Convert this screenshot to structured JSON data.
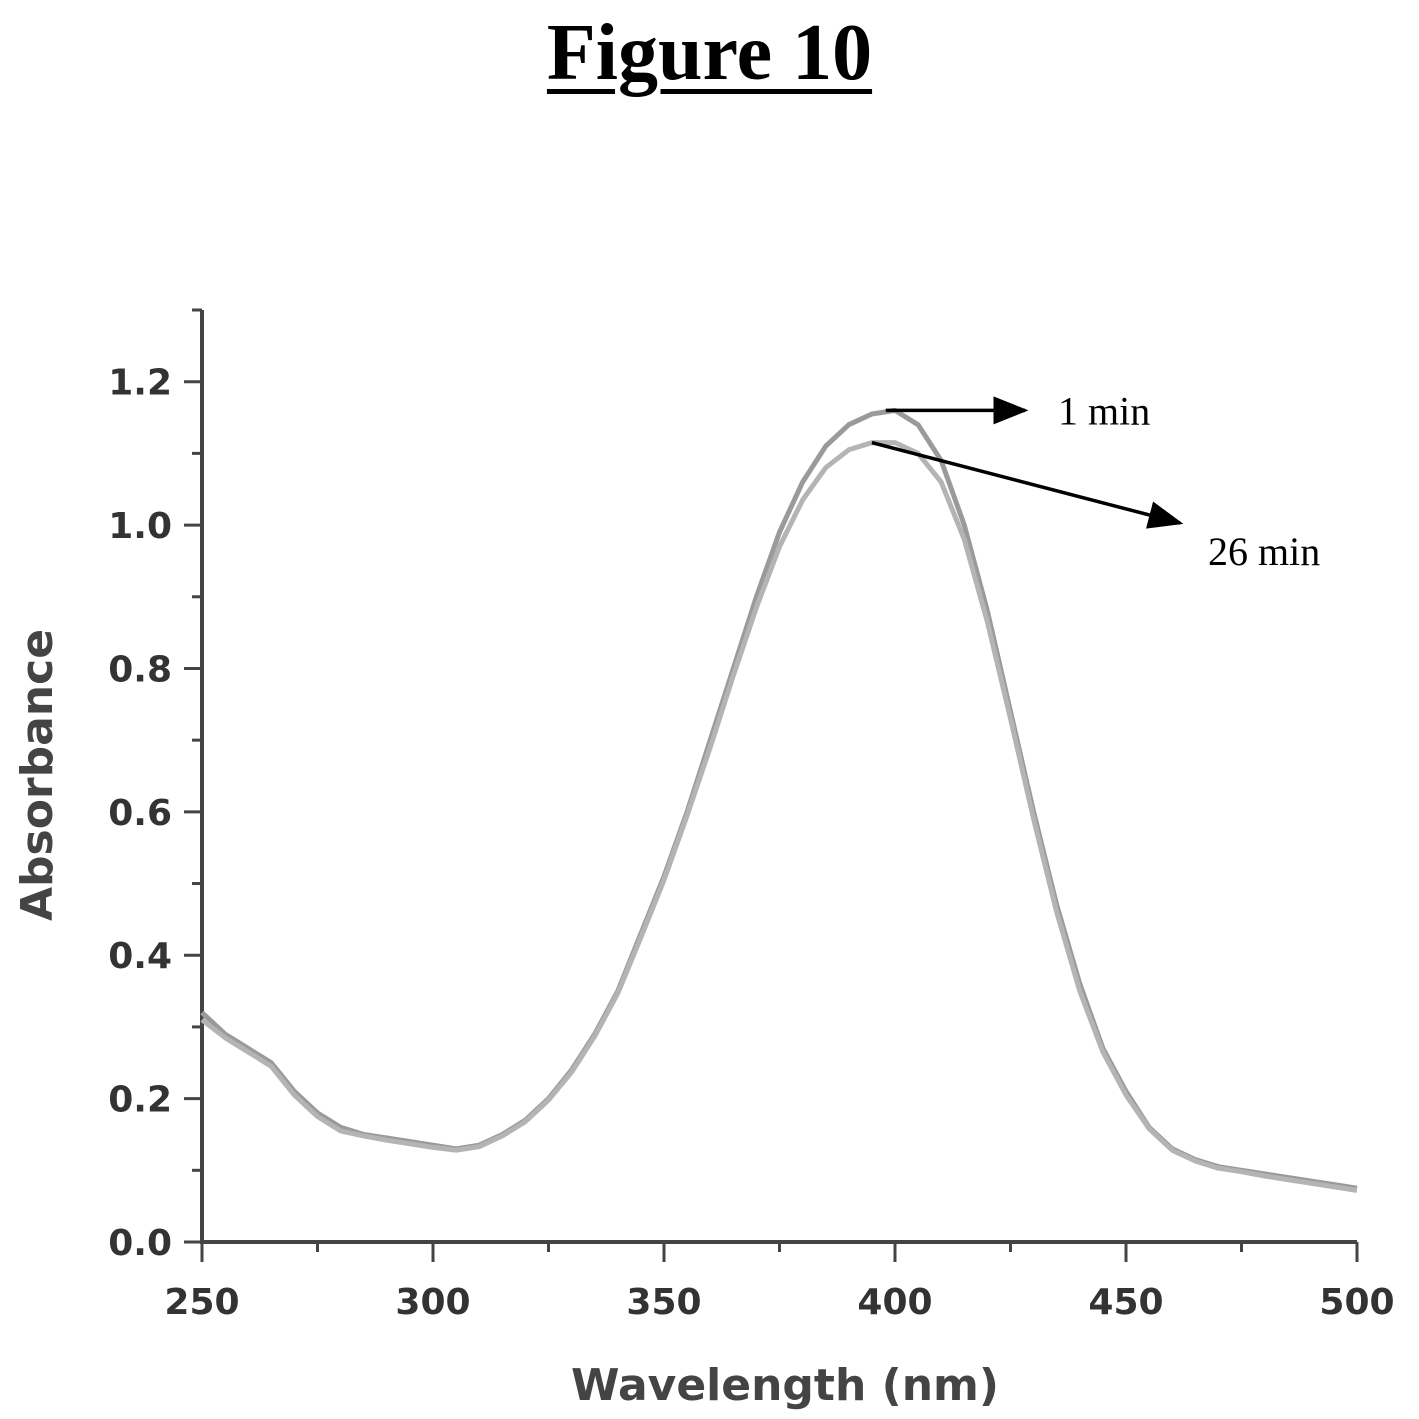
{
  "figure_title": "Figure 10",
  "chart_data": {
    "type": "line",
    "xlabel": "Wavelength (nm)",
    "ylabel": "Absorbance",
    "xlim": [
      250,
      500
    ],
    "ylim": [
      0,
      1.3
    ],
    "x_ticks": [
      "250",
      "300",
      "350",
      "400",
      "450",
      "500"
    ],
    "y_ticks": [
      "0.0",
      "0.2",
      "0.4",
      "0.6",
      "0.8",
      "1.0",
      "1.2"
    ],
    "grid": false,
    "series": [
      {
        "name": "1 min",
        "x": [
          250,
          255,
          260,
          265,
          270,
          275,
          280,
          285,
          290,
          295,
          300,
          305,
          310,
          315,
          320,
          325,
          330,
          335,
          340,
          345,
          350,
          355,
          360,
          365,
          370,
          375,
          380,
          385,
          390,
          395,
          400,
          405,
          410,
          415,
          420,
          425,
          430,
          435,
          440,
          445,
          450,
          455,
          460,
          465,
          470,
          475,
          480,
          485,
          490,
          495,
          500
        ],
        "y": [
          0.32,
          0.29,
          0.27,
          0.25,
          0.21,
          0.18,
          0.16,
          0.15,
          0.145,
          0.14,
          0.135,
          0.13,
          0.135,
          0.15,
          0.17,
          0.2,
          0.24,
          0.29,
          0.35,
          0.43,
          0.51,
          0.6,
          0.7,
          0.8,
          0.9,
          0.99,
          1.06,
          1.11,
          1.14,
          1.155,
          1.16,
          1.14,
          1.09,
          1.0,
          0.88,
          0.74,
          0.6,
          0.47,
          0.36,
          0.27,
          0.21,
          0.16,
          0.13,
          0.115,
          0.105,
          0.1,
          0.095,
          0.09,
          0.085,
          0.08,
          0.075
        ]
      },
      {
        "name": "26 min",
        "x": [
          250,
          255,
          260,
          265,
          270,
          275,
          280,
          285,
          290,
          295,
          300,
          305,
          310,
          315,
          320,
          325,
          330,
          335,
          340,
          345,
          350,
          355,
          360,
          365,
          370,
          375,
          380,
          385,
          390,
          395,
          400,
          405,
          410,
          415,
          420,
          425,
          430,
          435,
          440,
          445,
          450,
          455,
          460,
          465,
          470,
          475,
          480,
          485,
          490,
          495,
          500
        ],
        "y": [
          0.31,
          0.285,
          0.265,
          0.245,
          0.205,
          0.175,
          0.155,
          0.148,
          0.142,
          0.137,
          0.132,
          0.128,
          0.133,
          0.148,
          0.168,
          0.198,
          0.237,
          0.287,
          0.347,
          0.425,
          0.505,
          0.595,
          0.69,
          0.79,
          0.885,
          0.97,
          1.035,
          1.08,
          1.105,
          1.115,
          1.115,
          1.1,
          1.06,
          0.98,
          0.865,
          0.73,
          0.59,
          0.46,
          0.35,
          0.265,
          0.205,
          0.158,
          0.128,
          0.113,
          0.103,
          0.098,
          0.092,
          0.087,
          0.082,
          0.077,
          0.072
        ]
      }
    ],
    "annotations": [
      "1 min",
      "26 min"
    ]
  }
}
